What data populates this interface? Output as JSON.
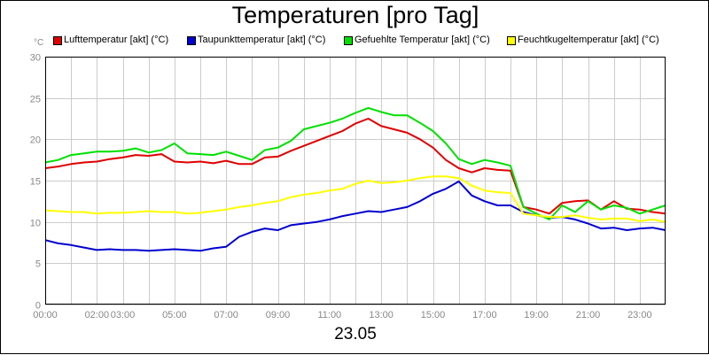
{
  "chart_data": {
    "type": "line",
    "title": "Temperaturen [pro Tag]",
    "xlabel": "23.05",
    "ylabel": "°C",
    "ylim": [
      0,
      30
    ],
    "yticks": [
      0,
      5,
      10,
      15,
      20,
      25,
      30
    ],
    "xlim": [
      0,
      24
    ],
    "xticks": [
      {
        "label": "00:00",
        "t": 0
      },
      {
        "label": "02:00",
        "t": 2
      },
      {
        "label": "03:00",
        "t": 3
      },
      {
        "label": "05:00",
        "t": 5
      },
      {
        "label": "07:00",
        "t": 7
      },
      {
        "label": "09:00",
        "t": 9
      },
      {
        "label": "11:00",
        "t": 11
      },
      {
        "label": "13:00",
        "t": 13
      },
      {
        "label": "15:00",
        "t": 15
      },
      {
        "label": "17:00",
        "t": 17
      },
      {
        "label": "19:00",
        "t": 19
      },
      {
        "label": "21:00",
        "t": 21
      },
      {
        "label": "23:00",
        "t": 23
      }
    ],
    "grid": true,
    "legend": "top",
    "series": [
      {
        "name": "Lufttemperatur [akt] (°C)",
        "color": "#e00000",
        "x": [
          0,
          0.5,
          1,
          1.5,
          2,
          2.5,
          3,
          3.5,
          4,
          4.5,
          5,
          5.5,
          6,
          6.5,
          7,
          7.5,
          8,
          8.5,
          9,
          9.5,
          10,
          10.5,
          11,
          11.5,
          12,
          12.5,
          13,
          13.5,
          14,
          14.5,
          15,
          15.5,
          16,
          16.5,
          17,
          17.5,
          18,
          18.5,
          19,
          19.5,
          20,
          20.5,
          21,
          21.5,
          22,
          22.5,
          23,
          23.5,
          24
        ],
        "values": [
          16.5,
          16.7,
          17.0,
          17.2,
          17.3,
          17.6,
          17.8,
          18.1,
          18.0,
          18.2,
          17.3,
          17.2,
          17.3,
          17.1,
          17.4,
          17.0,
          17.0,
          17.8,
          17.9,
          18.6,
          19.2,
          19.8,
          20.4,
          21.0,
          21.9,
          22.5,
          21.6,
          21.2,
          20.8,
          20.0,
          19.0,
          17.5,
          16.5,
          16.0,
          16.5,
          16.3,
          16.2,
          11.8,
          11.5,
          11.0,
          12.3,
          12.5,
          12.6,
          11.5,
          12.5,
          11.6,
          11.5,
          11.2,
          11.0
        ]
      },
      {
        "name": "Taupunkttemperatur [akt] (°C)",
        "color": "#0000d0",
        "x": [
          0,
          0.5,
          1,
          1.5,
          2,
          2.5,
          3,
          3.5,
          4,
          4.5,
          5,
          5.5,
          6,
          6.5,
          7,
          7.5,
          8,
          8.5,
          9,
          9.5,
          10,
          10.5,
          11,
          11.5,
          12,
          12.5,
          13,
          13.5,
          14,
          14.5,
          15,
          15.5,
          16,
          16.5,
          17,
          17.5,
          18,
          18.5,
          19,
          19.5,
          20,
          20.5,
          21,
          21.5,
          22,
          22.5,
          23,
          23.5,
          24
        ],
        "values": [
          7.8,
          7.4,
          7.2,
          6.9,
          6.6,
          6.7,
          6.6,
          6.6,
          6.5,
          6.6,
          6.7,
          6.6,
          6.5,
          6.8,
          7.0,
          8.2,
          8.8,
          9.2,
          9.0,
          9.6,
          9.8,
          10.0,
          10.3,
          10.7,
          11.0,
          11.3,
          11.2,
          11.5,
          11.8,
          12.5,
          13.4,
          14.0,
          14.9,
          13.2,
          12.5,
          12.0,
          12.0,
          11.2,
          10.8,
          10.5,
          10.6,
          10.3,
          9.8,
          9.2,
          9.3,
          9.0,
          9.2,
          9.3,
          9.0
        ]
      },
      {
        "name": "Gefuehlte Temperatur [akt] (°C)",
        "color": "#00e000",
        "x": [
          0,
          0.5,
          1,
          1.5,
          2,
          2.5,
          3,
          3.5,
          4,
          4.5,
          5,
          5.5,
          6,
          6.5,
          7,
          7.5,
          8,
          8.5,
          9,
          9.5,
          10,
          10.5,
          11,
          11.5,
          12,
          12.5,
          13,
          13.5,
          14,
          14.5,
          15,
          15.5,
          16,
          16.5,
          17,
          17.5,
          18,
          18.5,
          19,
          19.5,
          20,
          20.5,
          21,
          21.5,
          22,
          22.5,
          23,
          23.5,
          24
        ],
        "values": [
          17.2,
          17.5,
          18.1,
          18.3,
          18.5,
          18.5,
          18.6,
          18.9,
          18.4,
          18.7,
          19.5,
          18.3,
          18.2,
          18.1,
          18.5,
          18.0,
          17.5,
          18.7,
          19.0,
          19.8,
          21.2,
          21.6,
          22.0,
          22.5,
          23.2,
          23.8,
          23.3,
          22.9,
          22.9,
          22.0,
          21.0,
          19.5,
          17.6,
          17.0,
          17.5,
          17.2,
          16.8,
          11.8,
          11.0,
          10.3,
          12.0,
          11.2,
          12.5,
          11.5,
          12.0,
          11.7,
          11.0,
          11.5,
          12.0
        ]
      },
      {
        "name": "Feuchtkugeltemperatur [akt] (°C)",
        "color": "#ffff00",
        "x": [
          0,
          0.5,
          1,
          1.5,
          2,
          2.5,
          3,
          3.5,
          4,
          4.5,
          5,
          5.5,
          6,
          6.5,
          7,
          7.5,
          8,
          8.5,
          9,
          9.5,
          10,
          10.5,
          11,
          11.5,
          12,
          12.5,
          13,
          13.5,
          14,
          14.5,
          15,
          15.5,
          16,
          16.5,
          17,
          17.5,
          18,
          18.5,
          19,
          19.5,
          20,
          20.5,
          21,
          21.5,
          22,
          22.5,
          23,
          23.5,
          24
        ],
        "values": [
          11.4,
          11.3,
          11.2,
          11.2,
          11.0,
          11.1,
          11.1,
          11.2,
          11.3,
          11.2,
          11.2,
          11.0,
          11.1,
          11.3,
          11.5,
          11.8,
          12.0,
          12.3,
          12.5,
          13.0,
          13.3,
          13.5,
          13.8,
          14.0,
          14.6,
          15.0,
          14.7,
          14.8,
          15.0,
          15.3,
          15.5,
          15.5,
          15.3,
          14.4,
          13.8,
          13.6,
          13.5,
          11.0,
          10.8,
          10.6,
          10.6,
          10.8,
          10.5,
          10.3,
          10.4,
          10.4,
          10.1,
          10.3,
          10.0
        ]
      }
    ]
  }
}
